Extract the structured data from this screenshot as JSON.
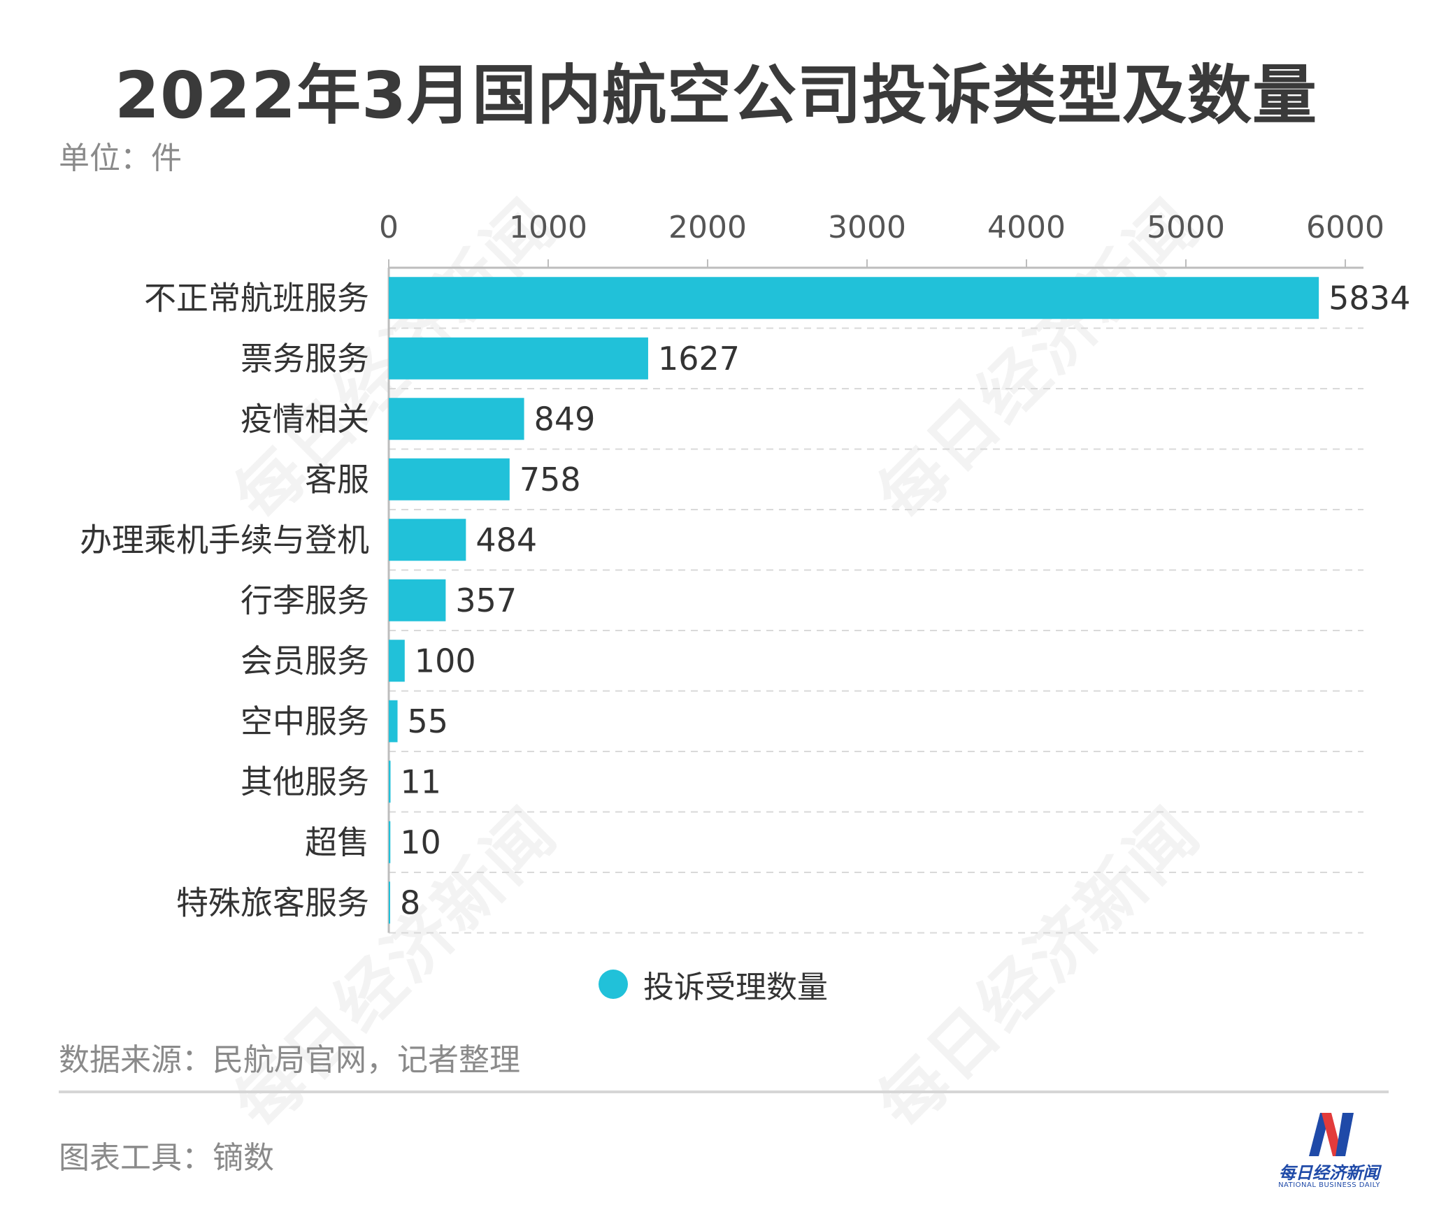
{
  "title": "2022年3月国内航空公司投诉类型及数量",
  "unit_label": "单位：件",
  "legend": {
    "label": "投诉受理数量"
  },
  "source": "数据来源：民航局官网，记者整理",
  "tool": "图表工具：镝数",
  "watermark": "每日经济新闻",
  "logo": {
    "cn": "每日经济新闻",
    "en": "NATIONAL BUSINESS DAILY"
  },
  "colors": {
    "bar": "#21c1d9",
    "grid": "#d9d9d9",
    "axis": "#bdbdbd",
    "logo_blue": "#1f4aa8",
    "logo_red": "#e23b3b"
  },
  "chart_data": {
    "type": "bar",
    "orientation": "horizontal",
    "title": "2022年3月国内航空公司投诉类型及数量",
    "categories": [
      "不正常航班服务",
      "票务服务",
      "疫情相关",
      "客服",
      "办理乘机手续与登机",
      "行李服务",
      "会员服务",
      "空中服务",
      "其他服务",
      "超售",
      "特殊旅客服务"
    ],
    "series": [
      {
        "name": "投诉受理数量",
        "values": [
          5834,
          1627,
          849,
          758,
          484,
          357,
          100,
          55,
          11,
          10,
          8
        ]
      }
    ],
    "xlim": [
      0,
      6000
    ],
    "x_ticks": [
      0,
      1000,
      2000,
      3000,
      4000,
      5000,
      6000
    ],
    "grid": true,
    "axis_position": "top",
    "legend_position": "bottom"
  }
}
